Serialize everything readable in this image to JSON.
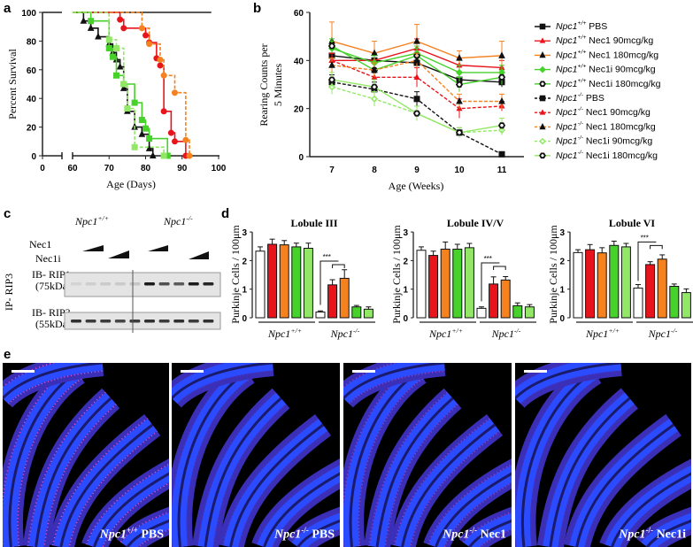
{
  "panel_labels": {
    "a": "a",
    "b": "b",
    "c": "c",
    "d": "d",
    "e": "e"
  },
  "colors": {
    "black": "#111111",
    "red": "#e8141c",
    "orange": "#f5811f",
    "green": "#46d22a",
    "lightgreen": "#92e866",
    "white": "#ffffff"
  },
  "chart_data": [
    {
      "id": "a",
      "type": "line",
      "subtype": "kaplan-meier step",
      "title": "",
      "xlabel": "Age (Days)",
      "ylabel": "Percent Survival",
      "xlim": [
        0,
        100
      ],
      "ylim": [
        0,
        100
      ],
      "x_ticks": [
        "0",
        "60",
        "70",
        "80",
        "90",
        "100"
      ],
      "y_ticks": [
        "0",
        "20",
        "40",
        "60",
        "80",
        "100"
      ],
      "series": [
        {
          "name": "Npc1+/+",
          "color": "#111111",
          "dash": false,
          "marker": "none",
          "start": 0,
          "points": [
            [
              98,
              100
            ]
          ]
        },
        {
          "name": "Npc1-/- PBS",
          "color": "#111111",
          "dash": false,
          "marker": "triangle",
          "start": 63,
          "points": [
            [
              63,
              94
            ],
            [
              65,
              89
            ],
            [
              67,
              83
            ],
            [
              70,
              78
            ],
            [
              71,
              72
            ],
            [
              72,
              67
            ],
            [
              73,
              62
            ],
            [
              74,
              47
            ],
            [
              75,
              31
            ],
            [
              77,
              20
            ],
            [
              79,
              15
            ],
            [
              81,
              5
            ],
            [
              82,
              0
            ]
          ]
        },
        {
          "name": "Npc1-/- Nec1 90mcg/kg",
          "color": "#e8141c",
          "dash": false,
          "marker": "circle",
          "start": 73,
          "points": [
            [
              73,
              95
            ],
            [
              74,
              89
            ],
            [
              80,
              84
            ],
            [
              81,
              79
            ],
            [
              83,
              68
            ],
            [
              84,
              63
            ],
            [
              85,
              31
            ],
            [
              87,
              16
            ],
            [
              88,
              10
            ],
            [
              91,
              0
            ]
          ]
        },
        {
          "name": "Npc1-/- Nec1 180mcg/kg",
          "color": "#f5811f",
          "dash": true,
          "marker": "circle",
          "start": 79,
          "points": [
            [
              79,
              89
            ],
            [
              81,
              78
            ],
            [
              84,
              67
            ],
            [
              85,
              56
            ],
            [
              88,
              44
            ],
            [
              91,
              11
            ],
            [
              92,
              0
            ]
          ]
        },
        {
          "name": "Npc1-/- Nec1i 90mcg/kg",
          "color": "#46d22a",
          "dash": false,
          "marker": "square",
          "start": 65,
          "points": [
            [
              65,
              94
            ],
            [
              70,
              75
            ],
            [
              71,
              69
            ],
            [
              72,
              56
            ],
            [
              74,
              50
            ],
            [
              77,
              37
            ],
            [
              79,
              25
            ],
            [
              80,
              19
            ],
            [
              81,
              12
            ],
            [
              86,
              0
            ]
          ]
        },
        {
          "name": "Npc1-/- Nec1i 180mcg/kg",
          "color": "#92e866",
          "dash": true,
          "marker": "square",
          "start": 70,
          "points": [
            [
              70,
              81
            ],
            [
              72,
              75
            ],
            [
              74,
              50
            ],
            [
              75,
              33
            ],
            [
              77,
              6
            ],
            [
              85,
              0
            ]
          ]
        }
      ]
    },
    {
      "id": "b",
      "type": "line",
      "title": "",
      "xlabel": "Age (Weeks)",
      "ylabel_lines": [
        "Rearing Counts per",
        "5 Minutes"
      ],
      "x": [
        7,
        8,
        9,
        10,
        11
      ],
      "x_ticks": [
        "7",
        "8",
        "9",
        "10",
        "11"
      ],
      "y_ticks": [
        "0",
        "20",
        "40",
        "60"
      ],
      "ylim": [
        0,
        60
      ],
      "legend_position": "right",
      "series": [
        {
          "genotype": "+/+",
          "treatment": " PBS",
          "color": "#111111",
          "dash": false,
          "marker": "square",
          "mfill": "#111111",
          "values": [
            42,
            40,
            39,
            32,
            31
          ],
          "err": [
            3,
            3,
            3,
            3,
            2
          ]
        },
        {
          "genotype": "+/+",
          "treatment": " Nec1 90mcg/kg",
          "color": "#e8141c",
          "dash": false,
          "marker": "star",
          "mfill": "#e8141c",
          "values": [
            40,
            40,
            45,
            38,
            37
          ],
          "err": [
            3,
            3,
            4,
            3,
            3
          ]
        },
        {
          "genotype": "+/+",
          "treatment": " Nec1 180mcg/kg",
          "color": "#f5811f",
          "dash": false,
          "marker": "triangle",
          "mfill": "#111111",
          "values": [
            48,
            43,
            48,
            41,
            42
          ],
          "err": [
            8,
            5,
            7,
            3,
            6
          ]
        },
        {
          "genotype": "+/+",
          "treatment": " Nec1i 90mcg/kg",
          "color": "#46d22a",
          "dash": false,
          "marker": "diamond",
          "mfill": "#46d22a",
          "values": [
            45,
            39,
            43,
            35,
            35
          ],
          "err": [
            3,
            3,
            3,
            3,
            3
          ]
        },
        {
          "genotype": "+/+",
          "treatment": " Nec1i 180mcg/kg",
          "color": "#46d22a",
          "dash": false,
          "marker": "hexagon",
          "mfill": "#ffffff",
          "values": [
            46,
            36,
            42,
            30,
            33
          ],
          "err": [
            3,
            3,
            3,
            3,
            3
          ]
        },
        {
          "genotype": "-/-",
          "treatment": " PBS",
          "color": "#111111",
          "dash": true,
          "marker": "square",
          "mfill": "#111111",
          "values": [
            31,
            28,
            24,
            10,
            1
          ],
          "err": [
            3,
            3,
            3,
            2,
            1
          ]
        },
        {
          "genotype": "-/-",
          "treatment": " Nec1 90mcg/kg",
          "color": "#e8141c",
          "dash": true,
          "marker": "star",
          "mfill": "#e8141c",
          "values": [
            40,
            33,
            33,
            20,
            21
          ],
          "err": [
            3,
            3,
            4,
            4,
            2
          ]
        },
        {
          "genotype": "-/-",
          "treatment": " Nec1 180mcg/kg",
          "color": "#f5811f",
          "dash": true,
          "marker": "triangle",
          "mfill": "#111111",
          "values": [
            38,
            36,
            40,
            23,
            23
          ],
          "err": [
            3,
            3,
            3,
            3,
            3
          ]
        },
        {
          "genotype": "-/-",
          "treatment": " Nec1i 90mcg/kg",
          "color": "#92e866",
          "dash": true,
          "marker": "diamond",
          "mfill": "#ffffff",
          "values": [
            29,
            24,
            18,
            10,
            11
          ],
          "err": [
            3,
            3,
            3,
            2,
            2
          ]
        },
        {
          "genotype": "-/-",
          "treatment": " Nec1i 180mcg/kg",
          "color": "#92e866",
          "dash": false,
          "marker": "hexagon",
          "mfill": "#ffffff",
          "values": [
            32,
            29,
            18,
            10,
            13
          ],
          "err": [
            3,
            3,
            3,
            2,
            3
          ]
        }
      ],
      "legend_prefix": "Npc1"
    },
    {
      "id": "d1",
      "type": "bar",
      "title": "Lobule III",
      "ylabel": "Purkinje Cells / 100μm",
      "ylim": [
        0,
        3
      ],
      "y_ticks": [
        "0",
        "1",
        "2",
        "3"
      ],
      "groups": [
        {
          "name": "Npc1",
          "sup": "+/+",
          "values": [
            2.33,
            2.57,
            2.55,
            2.48,
            2.43
          ],
          "err": [
            0.15,
            0.18,
            0.15,
            0.13,
            0.18
          ]
        },
        {
          "name": "Npc1",
          "sup": "-/-",
          "values": [
            0.2,
            1.15,
            1.38,
            0.38,
            0.3
          ],
          "err": [
            0.04,
            0.18,
            0.3,
            0.05,
            0.08
          ]
        }
      ],
      "bar_colors": [
        "#ffffff",
        "#e8141c",
        "#f5811f",
        "#46d22a",
        "#92e866"
      ],
      "significance": "***"
    },
    {
      "id": "d2",
      "type": "bar",
      "title": "Lobule IV/V",
      "ylabel": "Purkinje Cells / 100μm",
      "ylim": [
        0,
        3
      ],
      "y_ticks": [
        "0",
        "1",
        "2",
        "3"
      ],
      "groups": [
        {
          "name": "Npc1",
          "sup": "+/+",
          "values": [
            2.36,
            2.18,
            2.4,
            2.4,
            2.45
          ],
          "err": [
            0.12,
            0.15,
            0.25,
            0.17,
            0.15
          ]
        },
        {
          "name": "Npc1",
          "sup": "-/-",
          "values": [
            0.33,
            1.18,
            1.32,
            0.42,
            0.38
          ],
          "err": [
            0.05,
            0.25,
            0.12,
            0.1,
            0.08
          ]
        }
      ],
      "bar_colors": [
        "#ffffff",
        "#e8141c",
        "#f5811f",
        "#46d22a",
        "#92e866"
      ],
      "significance": "***"
    },
    {
      "id": "d3",
      "type": "bar",
      "title": "Lobule VI",
      "ylabel": "Purkinje Cells / 100μm",
      "ylim": [
        0,
        3
      ],
      "y_ticks": [
        "0",
        "1",
        "2",
        "3"
      ],
      "groups": [
        {
          "name": "Npc1",
          "sup": "+/+",
          "values": [
            2.28,
            2.38,
            2.27,
            2.53,
            2.48
          ],
          "err": [
            0.1,
            0.18,
            0.18,
            0.15,
            0.12
          ]
        },
        {
          "name": "Npc1",
          "sup": "-/-",
          "values": [
            1.04,
            1.86,
            2.05,
            1.1,
            0.88
          ],
          "err": [
            0.12,
            0.1,
            0.15,
            0.08,
            0.13
          ]
        }
      ],
      "bar_colors": [
        "#ffffff",
        "#e8141c",
        "#f5811f",
        "#46d22a",
        "#92e866"
      ],
      "significance": "***"
    }
  ],
  "blot": {
    "wt_label": "Npc1",
    "wt_sup": "+/+",
    "ko_label": "Npc1",
    "ko_sup": "-/-",
    "nec1": "Nec1",
    "nec1i": "Nec1i",
    "ip_label": "IP- RIP3",
    "rip1_label": "IB- RIP1",
    "rip1_kda": "(75kDa)",
    "rip3_label": "IB- RIP3",
    "rip3_kda": "(55kDa)",
    "rip1_intensity": [
      0.08,
      0.1,
      0.12,
      0.12,
      0.15,
      0.95,
      0.7,
      0.65,
      0.95,
      0.9
    ],
    "rip3_intensity": [
      0.85,
      0.8,
      0.8,
      0.75,
      0.8,
      0.85,
      0.8,
      0.85,
      0.8,
      0.85
    ]
  },
  "micrographs": [
    {
      "genotype": "Npc1",
      "sup": "+/+",
      "treatment": " PBS",
      "purkinje": 0.9
    },
    {
      "genotype": "Npc1",
      "sup": "-/-",
      "treatment": " PBS",
      "purkinje": 0.1
    },
    {
      "genotype": "Npc1",
      "sup": "-/-",
      "treatment": " Nec1",
      "purkinje": 0.5
    },
    {
      "genotype": "Npc1",
      "sup": "-/-",
      "treatment": " Nec1i",
      "purkinje": 0.08
    }
  ]
}
